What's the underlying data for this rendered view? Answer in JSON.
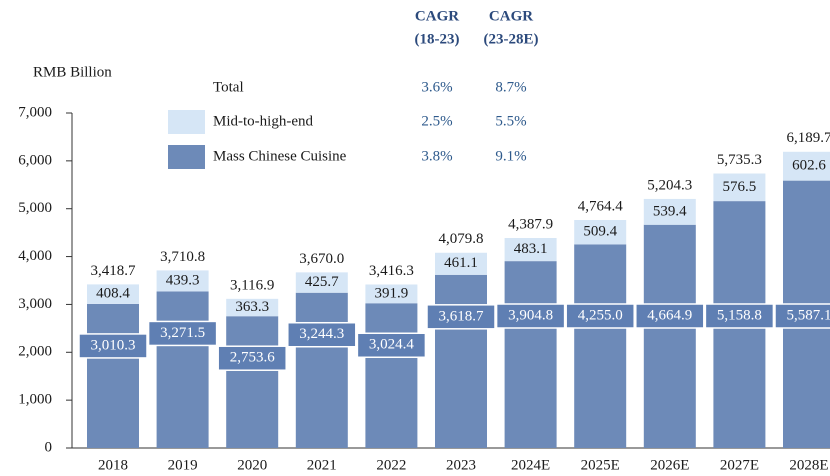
{
  "chart_data": {
    "type": "stacked_bar",
    "y_axis_label": "RMB Billion",
    "categories": [
      "2018",
      "2019",
      "2020",
      "2021",
      "2022",
      "2023",
      "2024E",
      "2025E",
      "2026E",
      "2027E",
      "2028E"
    ],
    "series": [
      {
        "name": "Mass Chinese Cuisine",
        "color": "#6d8ab8",
        "values": [
          3010.3,
          3271.5,
          2753.6,
          3244.3,
          3024.4,
          3618.7,
          3904.8,
          4255.0,
          4664.9,
          5158.8,
          5587.1
        ],
        "value_labels": [
          "3,010.3",
          "3,271.5",
          "2,753.6",
          "3,244.3",
          "3,024.4",
          "3,618.7",
          "3,904.8",
          "4,255.0",
          "4,664.9",
          "5,158.8",
          "5,587.1"
        ],
        "cagr": [
          3.8,
          9.1
        ],
        "cagr_labels": [
          "3.8%",
          "9.1%"
        ]
      },
      {
        "name": "Mid-to-high-end",
        "color": "#d6e6f6",
        "values": [
          408.4,
          439.3,
          363.3,
          425.7,
          391.9,
          461.1,
          483.1,
          509.4,
          539.4,
          576.5,
          602.6
        ],
        "cagr": [
          2.5,
          5.5
        ],
        "cagr_labels": [
          "2.5%",
          "5.5%"
        ]
      }
    ],
    "total": {
      "name": "Total",
      "values": [
        3418.7,
        3710.8,
        3116.9,
        3670.0,
        3416.3,
        4079.8,
        4387.9,
        4764.4,
        5204.3,
        5735.3,
        6189.7
      ],
      "value_labels": [
        "3,418.7",
        "3,710.8",
        "3,116.9",
        "3,670.0",
        "3,416.3",
        "4,079.8",
        "4,387.9",
        "4,764.4",
        "5,204.3",
        "5,735.3",
        "6,189.7"
      ],
      "cagr": [
        3.6,
        8.7
      ],
      "cagr_labels": [
        "3.6%",
        "8.7%"
      ]
    },
    "cagr_headers": [
      [
        "CAGR",
        "(18-23)"
      ],
      [
        "CAGR",
        "(23-28E)"
      ]
    ],
    "ylim": [
      0,
      7000
    ],
    "yticks": [
      0,
      {
        "value": 1000,
        "label": "1,000"
      },
      {
        "value": 2000,
        "label": "2,000"
      },
      {
        "value": 3000,
        "label": "3,000"
      },
      {
        "value": 4000,
        "label": "4,000"
      },
      {
        "value": 5000,
        "label": "5,000"
      },
      {
        "value": 6000,
        "label": "6,000"
      },
      {
        "value": 7000,
        "label": "7,000"
      }
    ]
  }
}
